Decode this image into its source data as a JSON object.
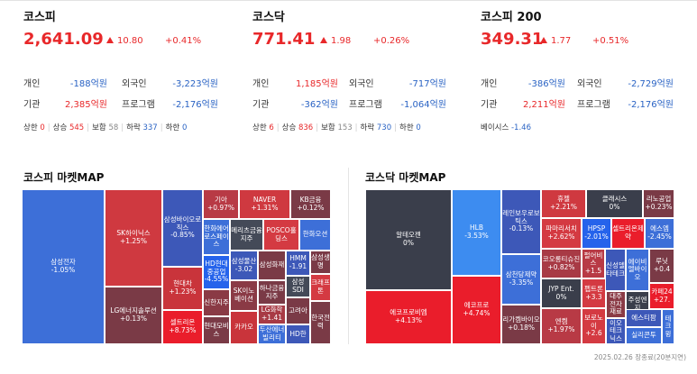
{
  "indices": [
    {
      "title": "코스피",
      "value": "2,641.09",
      "change": "10.80",
      "pct": "+0.41%",
      "personal_label": "개인",
      "personal": "-188억원",
      "foreign_label": "외국인",
      "foreign": "-3,223억원",
      "inst_label": "기관",
      "inst": "2,385억원",
      "program_label": "프로그램",
      "program": "-2,176억원",
      "stats": {
        "limit_up_label": "상한",
        "limit_up": "0",
        "up_label": "상승",
        "up": "545",
        "flat_label": "보합",
        "flat": "58",
        "down_label": "하락",
        "down": "337",
        "limit_down_label": "하한",
        "limit_down": "0"
      }
    },
    {
      "title": "코스닥",
      "value": "771.41",
      "change": "1.98",
      "pct": "+0.26%",
      "personal_label": "개인",
      "personal": "1,185억원",
      "foreign_label": "외국인",
      "foreign": "-717억원",
      "inst_label": "기관",
      "inst": "-362억원",
      "program_label": "프로그램",
      "program": "-1,064억원",
      "stats": {
        "limit_up_label": "상한",
        "limit_up": "6",
        "up_label": "상승",
        "up": "836",
        "flat_label": "보합",
        "flat": "153",
        "down_label": "하락",
        "down": "730",
        "limit_down_label": "하한",
        "limit_down": "0"
      }
    },
    {
      "title": "코스피 200",
      "value": "349.31",
      "change": "1.77",
      "pct": "+0.51%",
      "personal_label": "개인",
      "personal": "-386억원",
      "foreign_label": "외국인",
      "foreign": "-2,729억원",
      "inst_label": "기관",
      "inst": "2,211억원",
      "program_label": "프로그램",
      "program": "-2,176억원",
      "basis_label": "베이시스",
      "basis": "-1.46"
    }
  ],
  "maps": {
    "kospi_title": "코스피 마켓MAP",
    "kosdaq_title": "코스닥 마켓MAP",
    "kospi": [
      {
        "name": "삼성전자",
        "pct": "-1.05%",
        "color": "#3d6fd8"
      },
      {
        "name": "SK하이닉스",
        "pct": "+1.25%",
        "color": "#cf3940"
      },
      {
        "name": "LG에너지솔루션",
        "pct": "+0.13%",
        "color": "#7a3a46"
      },
      {
        "name": "삼성바이오로직스",
        "pct": "-0.85%",
        "color": "#3d58b8"
      },
      {
        "name": "현대차",
        "pct": "+1.23%",
        "color": "#c9343b"
      },
      {
        "name": "셀트리온",
        "pct": "+8.73%",
        "color": "#ea1d2b"
      },
      {
        "name": "기아",
        "pct": "+0.97%",
        "color": "#b83a45"
      },
      {
        "name": "NAVER",
        "pct": "+1.31%",
        "color": "#cf3940"
      },
      {
        "name": "KB금융",
        "pct": "+0.12%",
        "color": "#7a3a46"
      },
      {
        "name": "한화에어로스페이스",
        "pct": "",
        "color": "#3d6fd8"
      },
      {
        "name": "HD현대중공업",
        "pct": "-4.55%",
        "color": "#2563eb"
      },
      {
        "name": "신한지주",
        "pct": "",
        "color": "#8a3a45"
      },
      {
        "name": "현대모비스",
        "pct": "",
        "color": "#7a3a46"
      },
      {
        "name": "메리츠금융지주",
        "pct": "",
        "color": "#444a58"
      },
      {
        "name": "POSCO홀딩스",
        "pct": "",
        "color": "#d43a42"
      },
      {
        "name": "한화오션",
        "pct": "",
        "color": "#3d6fd8"
      },
      {
        "name": "삼성물산",
        "pct": "-3.02",
        "color": "#3d58b8"
      },
      {
        "name": "SK이노베이션",
        "pct": "",
        "color": "#8a3a45"
      },
      {
        "name": "카카오",
        "pct": "",
        "color": "#c9343b"
      },
      {
        "name": "삼성화재",
        "pct": "",
        "color": "#7a3a46"
      },
      {
        "name": "하나금융지주",
        "pct": "",
        "color": "#7a3a46"
      },
      {
        "name": "LG화학",
        "pct": "+1.41",
        "color": "#a83a45"
      },
      {
        "name": "두산에너빌리티",
        "pct": "",
        "color": "#3d6fd8"
      },
      {
        "name": "HMM",
        "pct": "-1.91",
        "color": "#3d58b8"
      },
      {
        "name": "삼성SDI",
        "pct": "",
        "color": "#444a58"
      },
      {
        "name": "고려아",
        "pct": "",
        "color": "#7a3a46"
      },
      {
        "name": "HD한",
        "pct": "",
        "color": "#3d58b8"
      },
      {
        "name": "삼성생명",
        "pct": "",
        "color": "#7a3a46"
      },
      {
        "name": "크래프톤",
        "pct": "",
        "color": "#d43a42"
      },
      {
        "name": "한국전력",
        "pct": "",
        "color": "#7a3a46"
      }
    ],
    "kosdaq": [
      {
        "name": "알테오젠",
        "pct": "0%",
        "color": "#3a3e4b"
      },
      {
        "name": "에코프로비엠",
        "pct": "+4.13%",
        "color": "#ea1d2b"
      },
      {
        "name": "HLB",
        "pct": "-3.53%",
        "color": "#3d8cf0"
      },
      {
        "name": "에코프로",
        "pct": "+4.74%",
        "color": "#ea1d2b"
      },
      {
        "name": "레인보우로보틱스",
        "pct": "-0.13%",
        "color": "#3d58b8"
      },
      {
        "name": "삼천당제약",
        "pct": "-3.35%",
        "color": "#3d6fd8"
      },
      {
        "name": "리가켐바이오",
        "pct": "+0.18%",
        "color": "#7a3a46"
      },
      {
        "name": "휴젤",
        "pct": "+2.21%",
        "color": "#cf3940"
      },
      {
        "name": "클래시스",
        "pct": "0%",
        "color": "#3a3e4b"
      },
      {
        "name": "리노공업",
        "pct": "+0.23%",
        "color": "#7a3a46"
      },
      {
        "name": "파마리서치",
        "pct": "+2.62%",
        "color": "#d43a42"
      },
      {
        "name": "HPSP",
        "pct": "-2.01%",
        "color": "#2563eb"
      },
      {
        "name": "셀트리온제약",
        "pct": "",
        "color": "#ea1d2b"
      },
      {
        "name": "에스엠",
        "pct": "-2.45%",
        "color": "#3d6fd8"
      },
      {
        "name": "코오롱티슈진",
        "pct": "+0.82%",
        "color": "#a83a45"
      },
      {
        "name": "펄어비스",
        "pct": "+1.5",
        "color": "#b83a45"
      },
      {
        "name": "JYP Ent.",
        "pct": "0%",
        "color": "#3a3e4b"
      },
      {
        "name": "신성델타테크",
        "pct": "",
        "color": "#3d58b8"
      },
      {
        "name": "에이비엘바이오",
        "pct": "",
        "color": "#3d6fd8"
      },
      {
        "name": "루닛",
        "pct": "+0.4",
        "color": "#7a3a46"
      },
      {
        "name": "엔켐",
        "pct": "+1.97%",
        "color": "#b83a45"
      },
      {
        "name": "펩트론",
        "pct": "+3.3",
        "color": "#d43a42"
      },
      {
        "name": "대주전자재료",
        "pct": "",
        "color": "#8a3a45"
      },
      {
        "name": "주성엔지",
        "pct": "",
        "color": "#3a3e4b"
      },
      {
        "name": "카페24",
        "pct": "+27.",
        "color": "#ea1d2b"
      },
      {
        "name": "보로노이",
        "pct": "+2.6",
        "color": "#d43a42"
      },
      {
        "name": "이오테크닉스",
        "pct": "",
        "color": "#3d58b8"
      },
      {
        "name": "에스티팜",
        "pct": "",
        "color": "#3d58b8"
      },
      {
        "name": "실리콘투",
        "pct": "",
        "color": "#3d6fd8"
      },
      {
        "name": "테크윙",
        "pct": "",
        "color": "#3d6fd8"
      }
    ]
  },
  "footer": "2025.02.26 장종료(20분지연)"
}
